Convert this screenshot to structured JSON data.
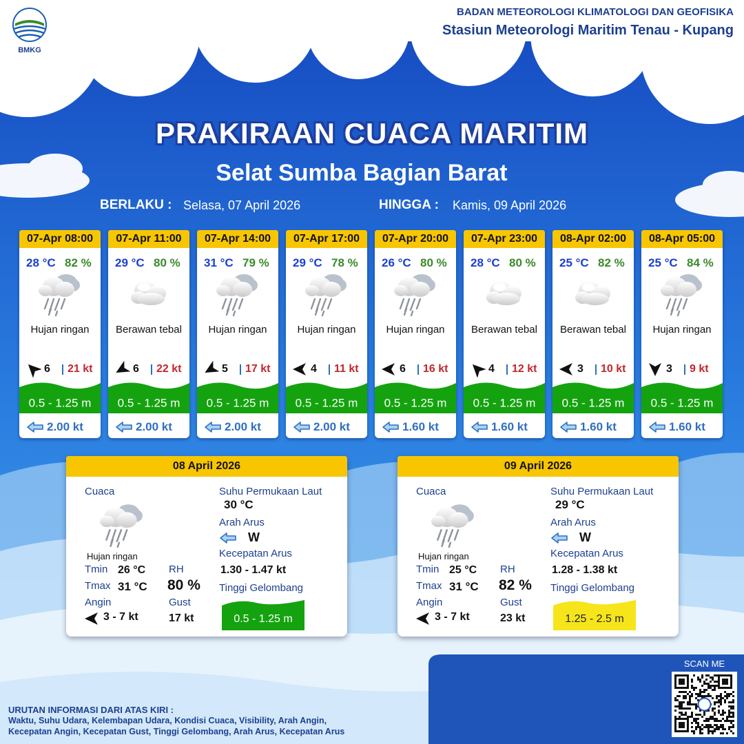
{
  "header": {
    "logo": "BMKG",
    "agency": "BADAN METEOROLOGI KLIMATOLOGI DAN GEOFISIKA",
    "station": "Stasiun Meteorologi Maritim Tenau - Kupang"
  },
  "title": "PRAKIRAAN CUACA MARITIM",
  "subtitle": "Selat Sumba Bagian Barat",
  "validity": {
    "from_label": "BERLAKU :",
    "from": "Selasa, 07 April 2026",
    "to_label": "HINGGA :",
    "to": "Kamis, 09 April 2026"
  },
  "forecasts": [
    {
      "time": "07-Apr 08:00",
      "temperature": "28 °C",
      "humidity": "82 %",
      "weather": "Hujan ringan",
      "wind_speed": "6",
      "gust": "21 kt",
      "wave_height": "0.5 - 1.25 m",
      "current_speed": "2.00 kt"
    },
    {
      "time": "07-Apr 11:00",
      "temperature": "29 °C",
      "humidity": "80 %",
      "weather": "Berawan tebal",
      "wind_speed": "6",
      "gust": "22 kt",
      "wave_height": "0.5 - 1.25 m",
      "current_speed": "2.00 kt"
    },
    {
      "time": "07-Apr 14:00",
      "temperature": "31 °C",
      "humidity": "79 %",
      "weather": "Hujan ringan",
      "wind_speed": "5",
      "gust": "17 kt",
      "wave_height": "0.5 - 1.25 m",
      "current_speed": "2.00 kt"
    },
    {
      "time": "07-Apr 17:00",
      "temperature": "29 °C",
      "humidity": "78 %",
      "weather": "Hujan ringan",
      "wind_speed": "4",
      "gust": "11 kt",
      "wave_height": "0.5 - 1.25 m",
      "current_speed": "2.00 kt"
    },
    {
      "time": "07-Apr 20:00",
      "temperature": "26 °C",
      "humidity": "80 %",
      "weather": "Hujan ringan",
      "wind_speed": "6",
      "gust": "16 kt",
      "wave_height": "0.5 - 1.25 m",
      "current_speed": "1.60 kt"
    },
    {
      "time": "07-Apr 23:00",
      "temperature": "28 °C",
      "humidity": "80 %",
      "weather": "Berawan tebal",
      "wind_speed": "4",
      "gust": "12 kt",
      "wave_height": "0.5 - 1.25 m",
      "current_speed": "1.60 kt"
    },
    {
      "time": "08-Apr 02:00",
      "temperature": "25 °C",
      "humidity": "82 %",
      "weather": "Berawan tebal",
      "wind_speed": "3",
      "gust": "10 kt",
      "wave_height": "0.5 - 1.25 m",
      "current_speed": "1.60 kt"
    },
    {
      "time": "08-Apr 05:00",
      "temperature": "25 °C",
      "humidity": "84 %",
      "weather": "Hujan ringan",
      "wind_speed": "3",
      "gust": "9 kt",
      "wave_height": "0.5 - 1.25 m",
      "current_speed": "1.60 kt"
    }
  ],
  "daily": [
    {
      "date": "08 April 2026",
      "weather_label": "Cuaca",
      "weather": "Hujan ringan",
      "tmin_label": "Tmin",
      "tmin": "26 °C",
      "tmax_label": "Tmax",
      "tmax": "31 °C",
      "wind_label": "Angin",
      "wind": "3 - 7 kt",
      "rh_label": "RH",
      "rh": "80 %",
      "gust_label": "Gust",
      "gust": "17 kt",
      "sst_label": "Suhu Permukaan Laut",
      "sst": "30 °C",
      "current_dir_label": "Arah Arus",
      "current_dir": "W",
      "current_speed_label": "Kecepatan Arus",
      "current_speed": "1.30 - 1.47 kt",
      "wave_label": "Tinggi Gelombang",
      "wave_height": "0.5 - 1.25 m"
    },
    {
      "date": "09 April 2026",
      "weather_label": "Cuaca",
      "weather": "Hujan ringan",
      "tmin_label": "Tmin",
      "tmin": "25 °C",
      "tmax_label": "Tmax",
      "tmax": "31 °C",
      "wind_label": "Angin",
      "wind": "3 - 7 kt",
      "rh_label": "RH",
      "rh": "82 %",
      "gust_label": "Gust",
      "gust": "23 kt",
      "sst_label": "Suhu Permukaan Laut",
      "sst": "29 °C",
      "current_dir_label": "Arah Arus",
      "current_dir": "W",
      "current_speed_label": "Kecepatan Arus",
      "current_speed": "1.28 - 1.38 kt",
      "wave_label": "Tinggi Gelombang",
      "wave_height": "1.25 - 2.5 m"
    }
  ],
  "footer": {
    "legend_title": "URUTAN INFORMASI DARI ATAS KIRI :",
    "legend_lines": [
      "Waktu, Suhu Udara, Kelembapan Udara, Kondisi Cuaca, Visibility, Arah Angin,",
      "Kecepatan Angin, Kecepatan Gust, Tinggi Gelombang, Arah Arus, Kecepatan Arus"
    ],
    "scan": "SCAN ME"
  }
}
